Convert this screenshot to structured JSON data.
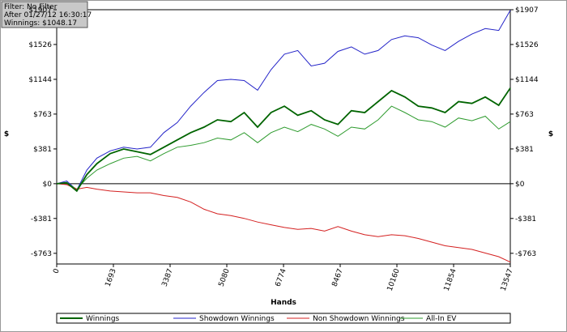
{
  "chart_data": {
    "type": "line",
    "annotations": [
      "Filter: No Filter",
      "After 01/27/12 16:30:17",
      "Winnings: $1048.17"
    ],
    "xlabel": "Hands",
    "ylabel": "$",
    "x": [
      0,
      300,
      600,
      900,
      1200,
      1600,
      2000,
      2400,
      2800,
      3200,
      3600,
      4000,
      4400,
      4800,
      5200,
      5600,
      6000,
      6400,
      6800,
      7200,
      7600,
      8000,
      8400,
      8800,
      9200,
      9600,
      10000,
      10400,
      10800,
      11200,
      11600,
      12000,
      12400,
      12800,
      13200,
      13547
    ],
    "series": [
      {
        "name": "Winnings",
        "color": "#006400",
        "values": [
          0,
          10,
          -80,
          100,
          220,
          330,
          380,
          350,
          320,
          400,
          480,
          560,
          620,
          700,
          680,
          780,
          620,
          780,
          850,
          750,
          800,
          700,
          650,
          800,
          780,
          900,
          1020,
          950,
          850,
          830,
          780,
          900,
          880,
          950,
          860,
          1048
        ]
      },
      {
        "name": "Showdown Winnings",
        "color": "#2323c8",
        "values": [
          0,
          30,
          -70,
          150,
          280,
          360,
          400,
          380,
          400,
          560,
          670,
          850,
          1000,
          1130,
          1144,
          1130,
          1025,
          1250,
          1420,
          1460,
          1290,
          1320,
          1450,
          1500,
          1420,
          1460,
          1580,
          1620,
          1600,
          1520,
          1460,
          1560,
          1640,
          1700,
          1680,
          1900
        ]
      },
      {
        "name": "Non Showdown Winnings",
        "color": "#d42020",
        "values": [
          0,
          -10,
          -60,
          -40,
          -60,
          -80,
          -90,
          -100,
          -100,
          -130,
          -150,
          -200,
          -280,
          -330,
          -350,
          -380,
          -420,
          -450,
          -480,
          -500,
          -490,
          -520,
          -470,
          -520,
          -560,
          -580,
          -560,
          -570,
          -600,
          -640,
          -680,
          -700,
          -720,
          -760,
          -800,
          -860
        ]
      },
      {
        "name": "All-In EV",
        "color": "#2e9b2e",
        "values": [
          0,
          5,
          -60,
          60,
          150,
          220,
          280,
          300,
          250,
          330,
          400,
          420,
          450,
          500,
          480,
          560,
          450,
          560,
          620,
          570,
          650,
          600,
          520,
          620,
          600,
          700,
          850,
          780,
          700,
          680,
          620,
          720,
          690,
          740,
          600,
          680
        ]
      }
    ],
    "xlim": [
      0,
      13547
    ],
    "xticks": [
      0,
      1693,
      3387,
      5080,
      6774,
      8467,
      10160,
      11854,
      13547
    ],
    "ylim": [
      -880,
      1907
    ],
    "yticks": [
      {
        "value": -763,
        "label": "-$763"
      },
      {
        "value": -381,
        "label": "-$381"
      },
      {
        "value": 0,
        "label": "$0"
      },
      {
        "value": 381,
        "label": "$381"
      },
      {
        "value": 763,
        "label": "$763"
      },
      {
        "value": 1144,
        "label": "$1144"
      },
      {
        "value": 1526,
        "label": "$1526"
      },
      {
        "value": 1907,
        "label": "$1907"
      }
    ],
    "zero_line": true,
    "legend": "bottom"
  }
}
